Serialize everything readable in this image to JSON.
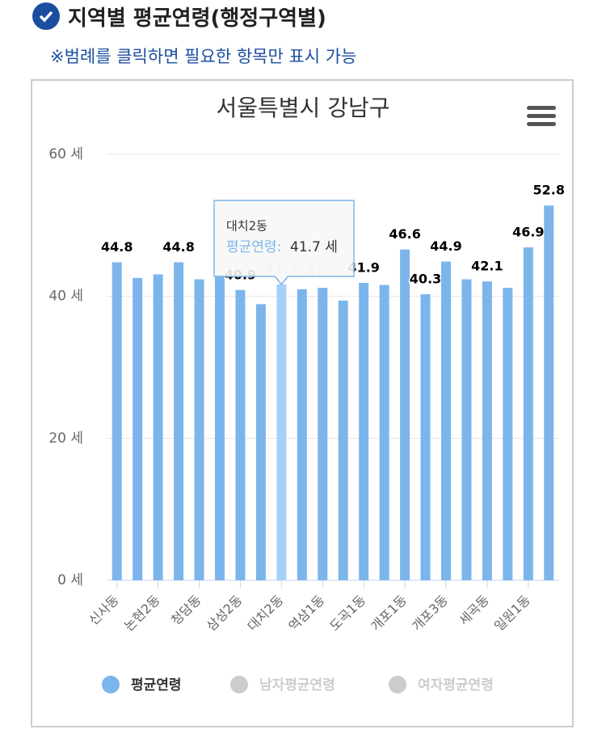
{
  "header": {
    "title": "지역별 평균연령(행정구역별)",
    "note": "※범례를 클릭하면 필요한 항목만 표시 가능"
  },
  "chart_data": {
    "type": "bar",
    "title": "서울특별시 강남구",
    "categories": [
      "신사동",
      null,
      "논현2동",
      null,
      "청담동",
      null,
      "삼성2동",
      null,
      "대치2동",
      null,
      "역삼1동",
      null,
      "도곡1동",
      null,
      "개포1동",
      null,
      "개포3동",
      null,
      "세곡동",
      null,
      "일원1동",
      null
    ],
    "series": [
      {
        "name": "평균연령",
        "color": "#7cb5ec",
        "values": [
          44.8,
          42.6,
          43.1,
          44.8,
          42.4,
          43.0,
          40.9,
          38.9,
          41.7,
          41.0,
          41.2,
          39.4,
          41.9,
          41.6,
          46.6,
          40.3,
          44.9,
          42.4,
          42.1,
          41.2,
          46.9,
          52.8
        ],
        "value_labels": [
          "44.8",
          null,
          null,
          "44.8",
          null,
          null,
          "40.9",
          null,
          "41.7",
          null,
          "41.2",
          null,
          "41.9",
          null,
          "46.6",
          "40.3",
          "44.9",
          null,
          "42.1",
          null,
          "46.9",
          "52.8"
        ]
      }
    ],
    "legend": [
      {
        "name": "평균연령",
        "color": "#7cb5ec"
      },
      {
        "name": "남자평균연령",
        "color": "#cccccc"
      },
      {
        "name": "여자평균연령",
        "color": "#cccccc"
      }
    ],
    "ylim": [
      0,
      60
    ],
    "yticks": [
      {
        "value": 0,
        "label": "0 세"
      },
      {
        "value": 20,
        "label": "20 세"
      },
      {
        "value": 40,
        "label": "40 세"
      },
      {
        "value": 60,
        "label": "60 세"
      }
    ],
    "grid": true,
    "tooltip": {
      "category": "대치2동",
      "series_label": "평균연령:",
      "value": "41.7 세"
    }
  }
}
